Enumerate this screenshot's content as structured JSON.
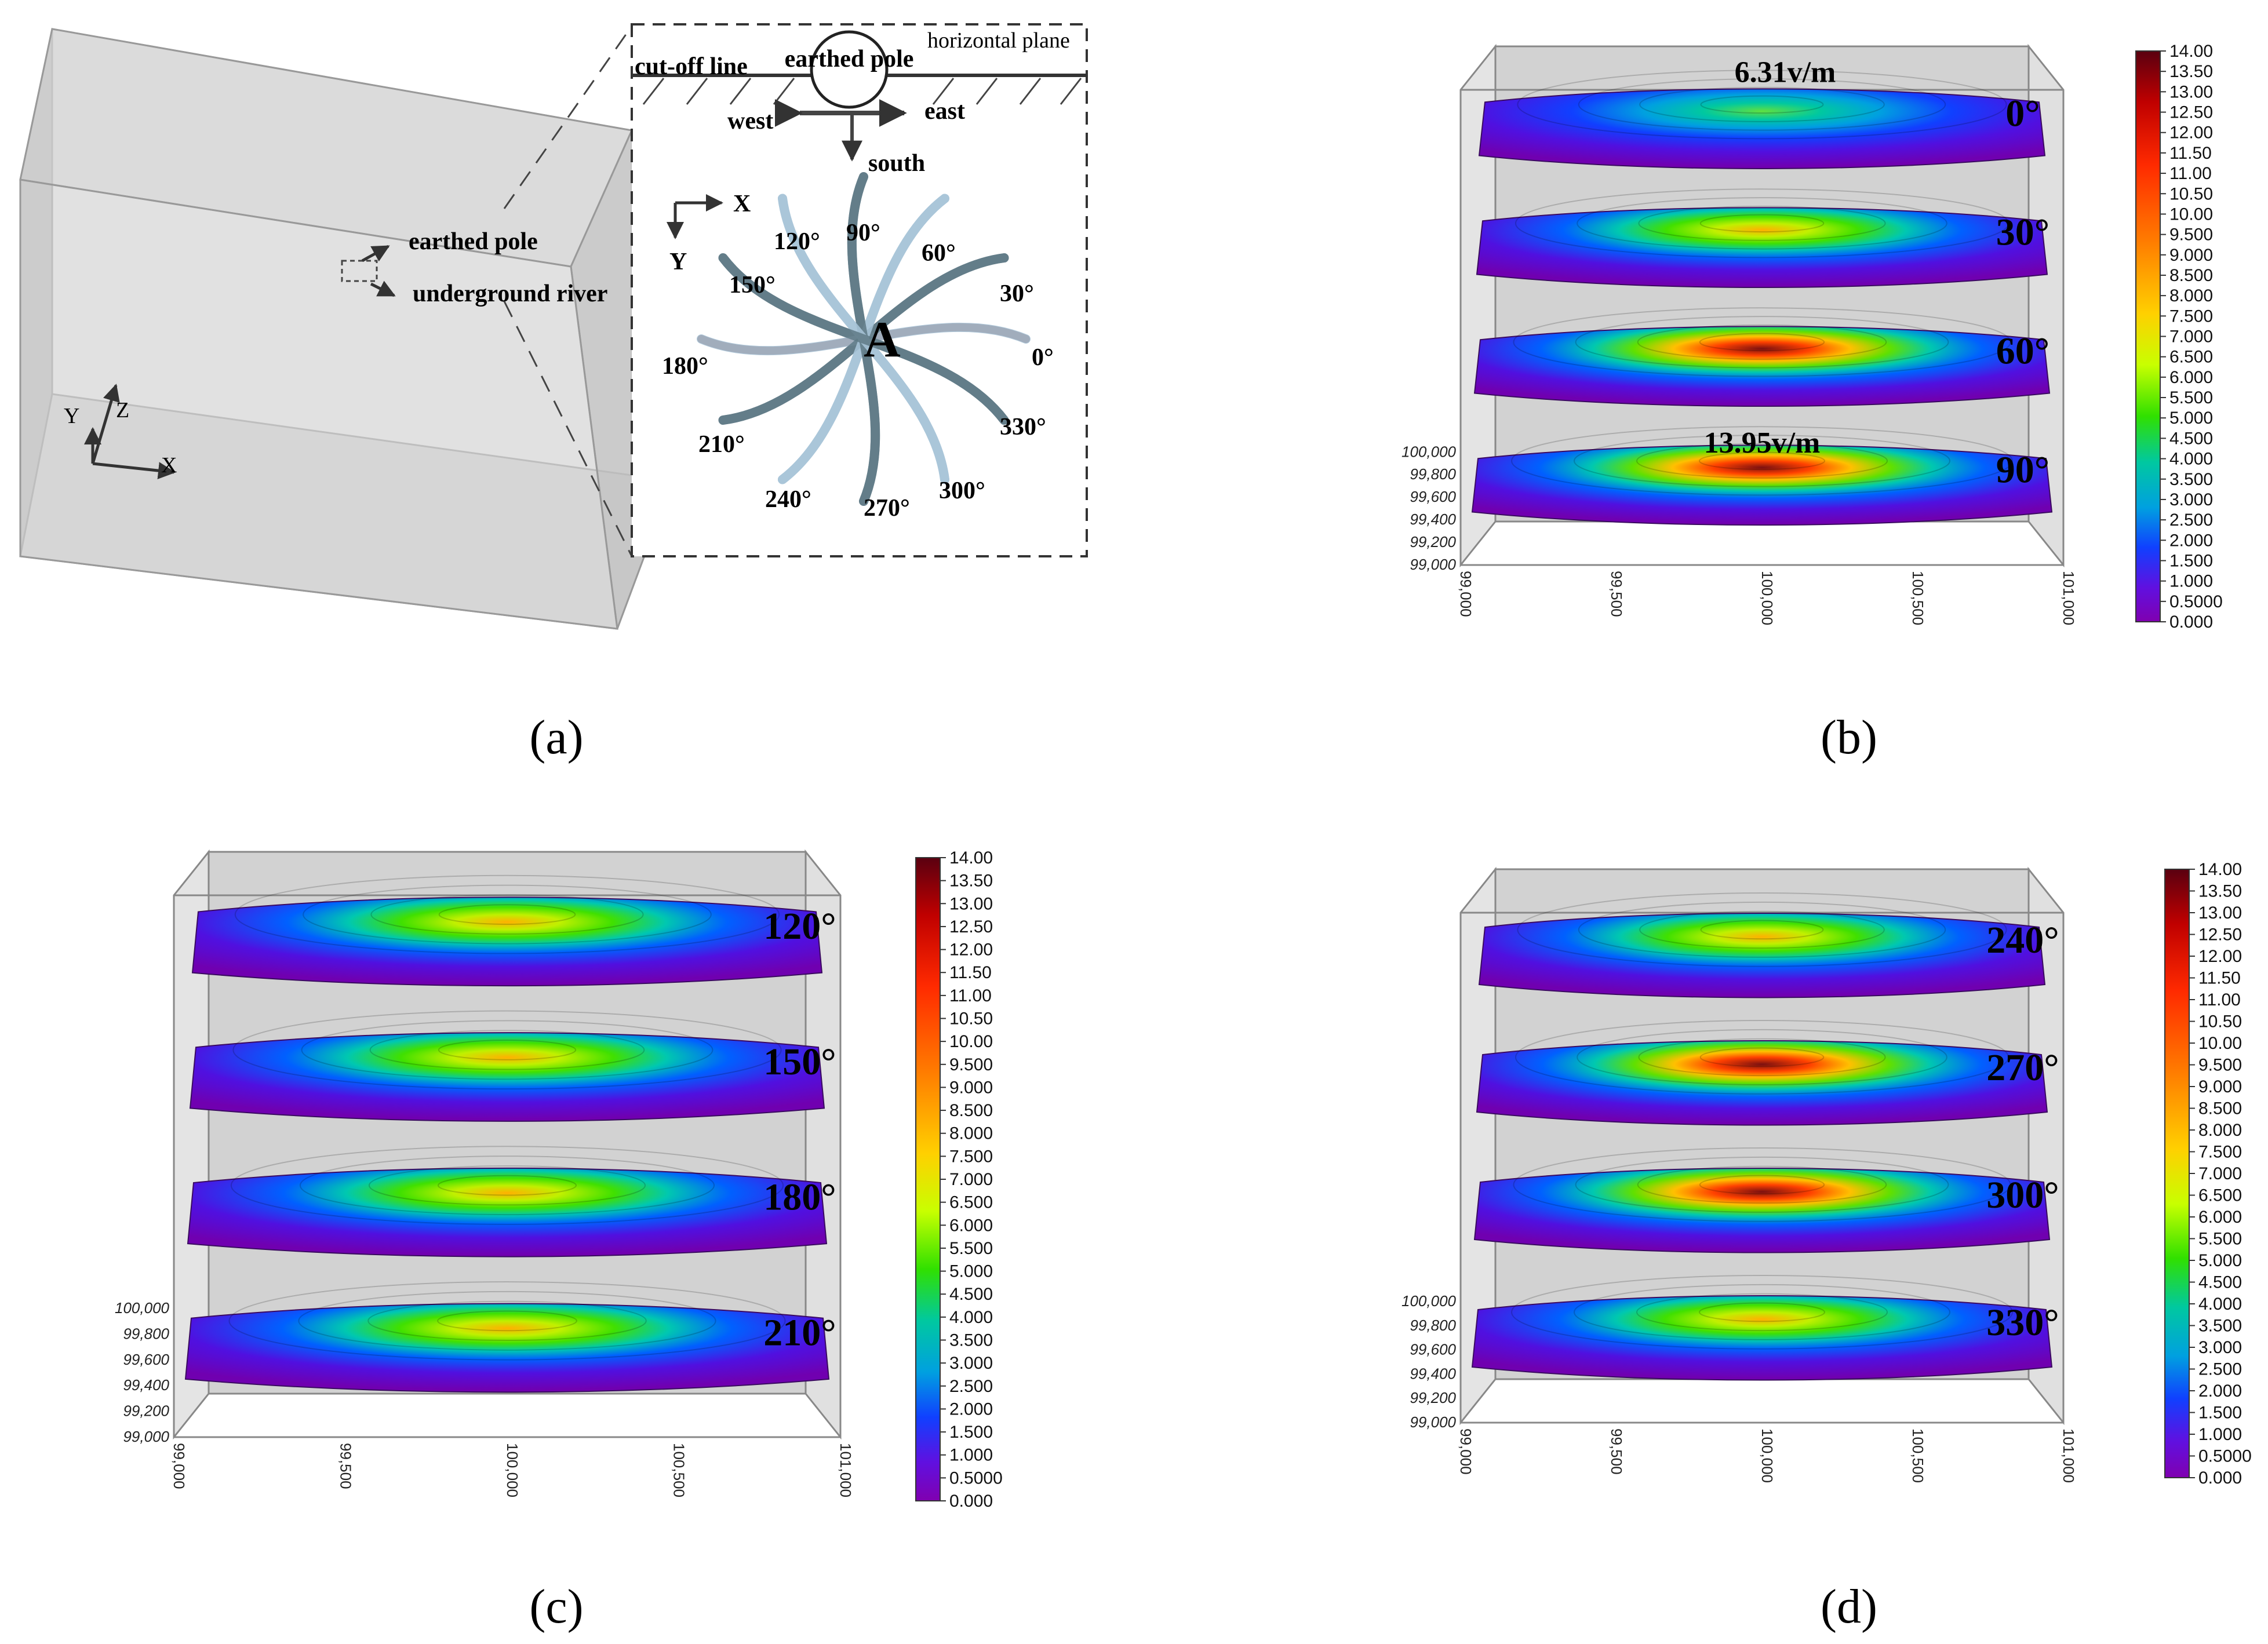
{
  "panel_a": {
    "caption": "(a)",
    "inset": {
      "cutoff": "cut-off line",
      "horizontal": "horizontal plane",
      "pole": "earthed pole",
      "west": "west",
      "east": "east",
      "south": "south",
      "x_axis": "X",
      "y_axis": "Y",
      "center": "A",
      "angles": [
        "0°",
        "30°",
        "60°",
        "90°",
        "120°",
        "150°",
        "180°",
        "210°",
        "240°",
        "270°",
        "300°",
        "330°"
      ]
    },
    "callouts": {
      "pole": "earthed pole",
      "river": "underground river"
    },
    "axes": {
      "x": "X",
      "y": "Y",
      "z": "Z"
    }
  },
  "panel_b": {
    "caption": "(b)",
    "angles": [
      "0°",
      "30°",
      "60°",
      "90°"
    ],
    "annotations": [
      "6.31v/m",
      "13.95v/m"
    ],
    "y_ticks": [
      "100,000",
      "99,800",
      "99,600",
      "99,400",
      "99,200",
      "99,000"
    ],
    "x_ticks": [
      "99,000",
      "99,500",
      "100,000",
      "100,500",
      "101,000"
    ]
  },
  "panel_c": {
    "caption": "(c)",
    "angles": [
      "120°",
      "150°",
      "180°",
      "210°"
    ],
    "y_ticks": [
      "100,000",
      "99,800",
      "99,600",
      "99,400",
      "99,200",
      "99,000"
    ],
    "x_ticks": [
      "99,000",
      "99,500",
      "100,000",
      "100,500",
      "101,000"
    ]
  },
  "panel_d": {
    "caption": "(d)",
    "angles": [
      "240°",
      "270°",
      "300°",
      "330°"
    ],
    "y_ticks": [
      "100,000",
      "99,800",
      "99,600",
      "99,400",
      "99,200",
      "99,000"
    ],
    "x_ticks": [
      "99,000",
      "99,500",
      "100,000",
      "100,500",
      "101,000"
    ]
  },
  "colorbar": {
    "ticks": [
      "14.00",
      "13.50",
      "13.00",
      "12.50",
      "12.00",
      "11.50",
      "11.00",
      "10.50",
      "10.00",
      "9.500",
      "9.000",
      "8.500",
      "8.000",
      "7.500",
      "7.000",
      "6.500",
      "6.000",
      "5.500",
      "5.000",
      "4.500",
      "4.000",
      "3.500",
      "3.000",
      "2.500",
      "2.000",
      "1.500",
      "1.000",
      "0.5000",
      "0.000"
    ],
    "stops": [
      "#5a0010",
      "#c00000",
      "#ff2a00",
      "#ff7a00",
      "#ffd000",
      "#c8ff00",
      "#30e000",
      "#00c8a0",
      "#00a0e0",
      "#1040ff",
      "#6010e0",
      "#8000b0"
    ]
  },
  "chart_data": [
    {
      "type": "heatmap",
      "panel": "b",
      "layers": [
        "0°",
        "30°",
        "60°",
        "90°"
      ],
      "value_range": [
        0,
        14
      ],
      "annotations": [
        "6.31v/m",
        "13.95v/m"
      ]
    },
    {
      "type": "heatmap",
      "panel": "c",
      "layers": [
        "120°",
        "150°",
        "180°",
        "210°"
      ],
      "value_range": [
        0,
        14
      ]
    },
    {
      "type": "heatmap",
      "panel": "d",
      "layers": [
        "240°",
        "270°",
        "300°",
        "330°"
      ],
      "value_range": [
        0,
        14
      ]
    }
  ]
}
